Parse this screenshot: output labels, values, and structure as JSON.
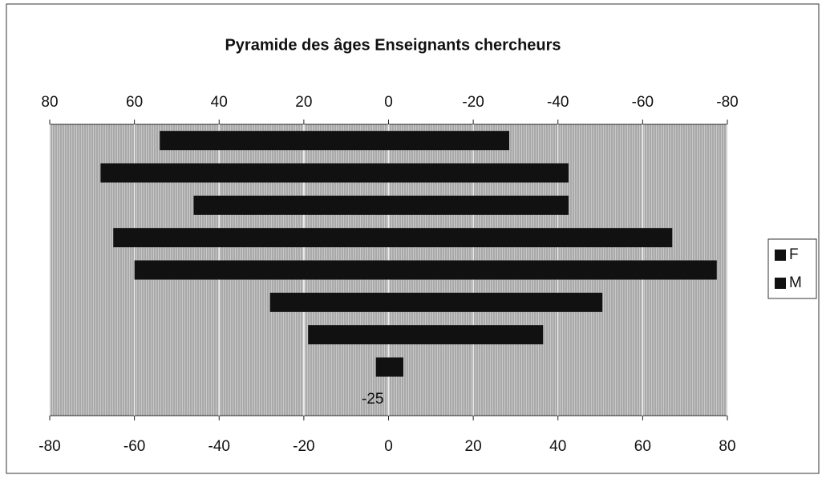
{
  "chart_data": {
    "type": "bar",
    "orientation": "horizontal",
    "stacked": false,
    "title": "Pyramide des âges Enseignants chercheurs",
    "categories": [
      "-25",
      null,
      null,
      null,
      null,
      null,
      null,
      null,
      null
    ],
    "series": [
      {
        "name": "F",
        "color": "#111111",
        "values": [
          null,
          -3,
          -19,
          -28,
          -60,
          -65,
          -46,
          -68,
          -54
        ]
      },
      {
        "name": "M",
        "color": "#111111",
        "values": [
          null,
          3.5,
          36.5,
          50.5,
          77.5,
          67,
          42.5,
          42.5,
          28.5
        ]
      }
    ],
    "xlim": [
      -80,
      80
    ],
    "xticks": [
      -80,
      -60,
      -40,
      -20,
      0,
      20,
      40,
      60,
      80
    ],
    "x2lim": [
      80,
      -80
    ],
    "x2ticks": [
      80,
      60,
      40,
      20,
      0,
      -20,
      -40,
      -60,
      -80
    ],
    "grid": true,
    "legend": "right"
  }
}
